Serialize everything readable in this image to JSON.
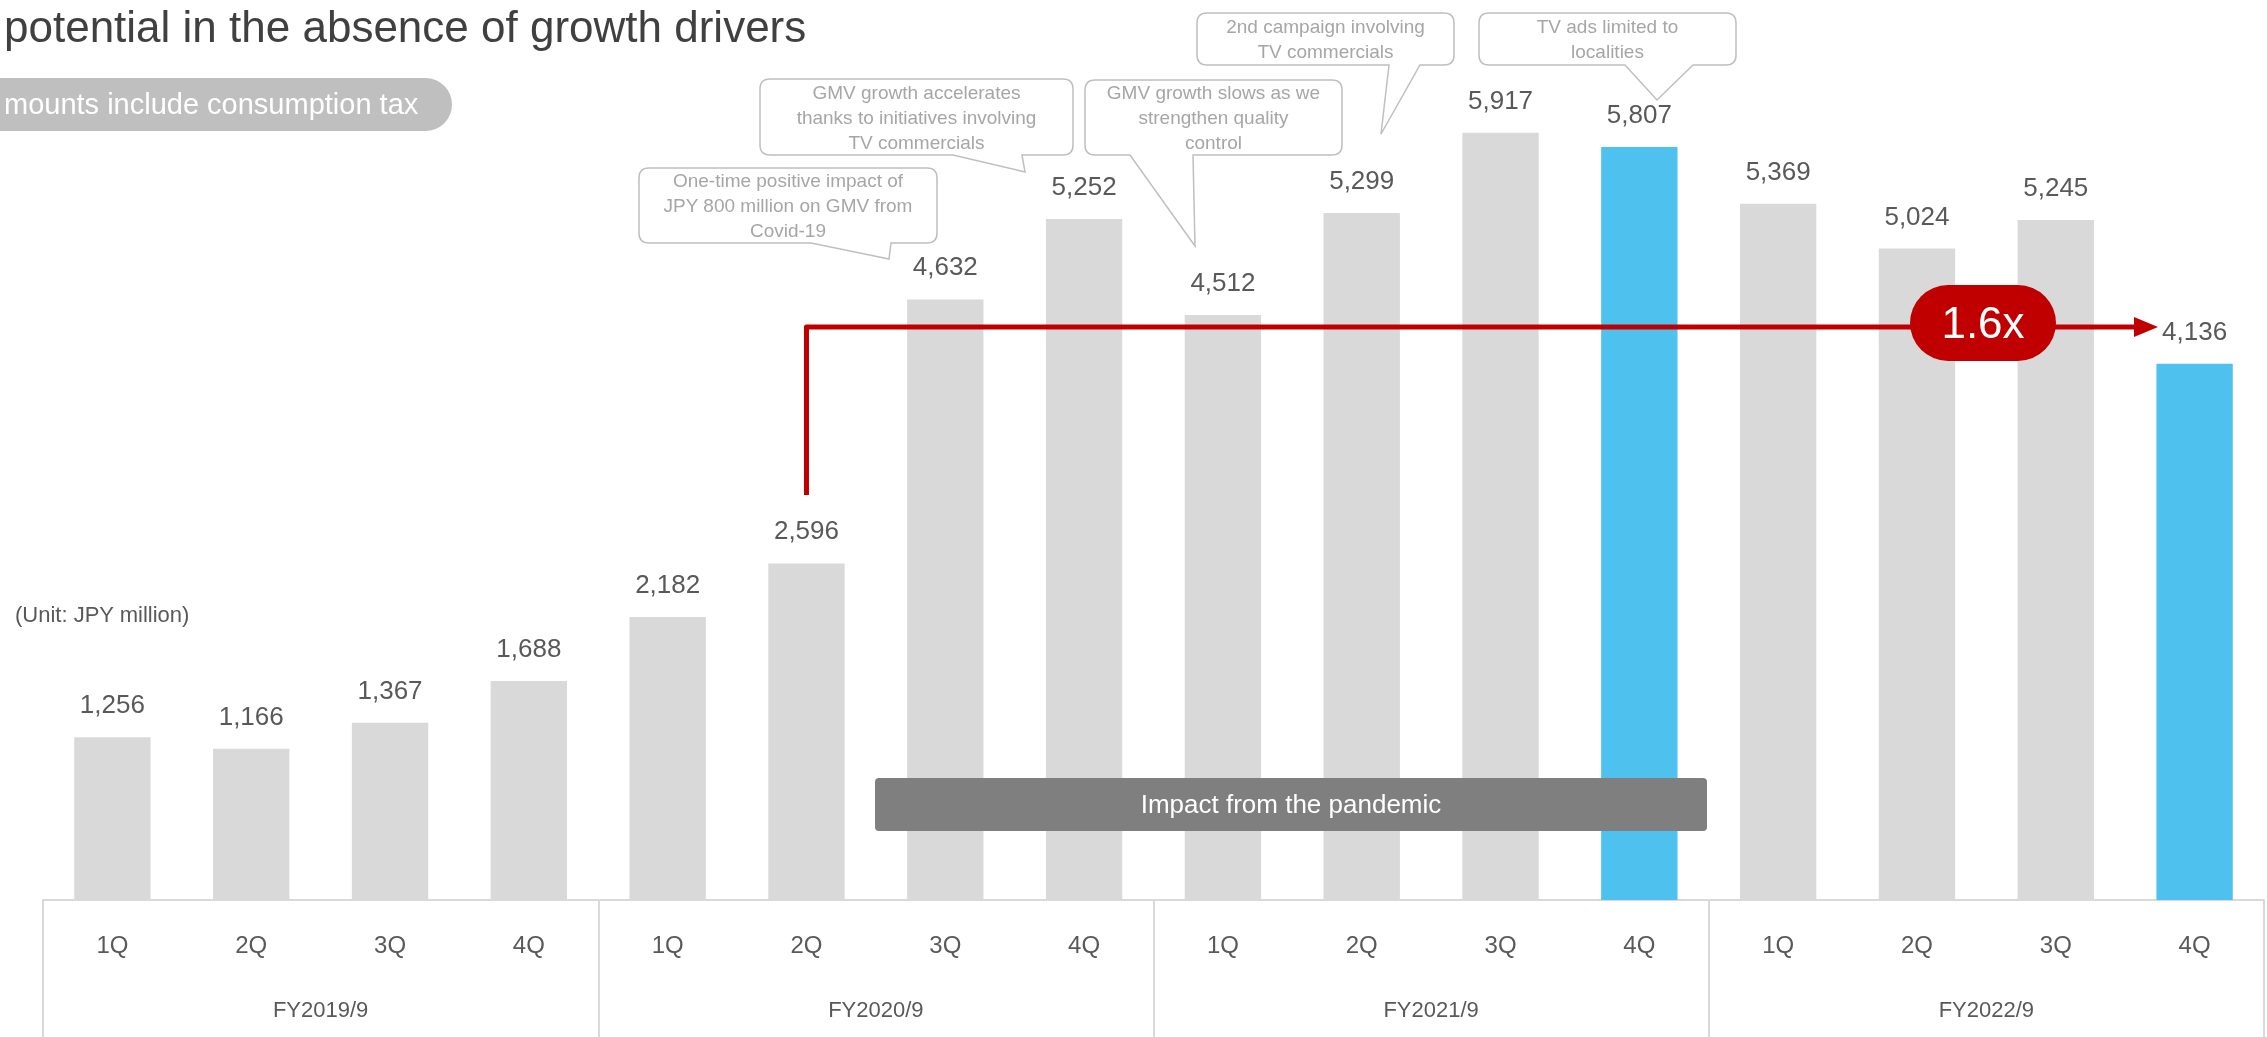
{
  "chart_data": {
    "type": "bar",
    "title": "potential in the absence of growth drivers",
    "subtitle": "mounts include consumption tax",
    "ylabel": "(Unit: JPY million)",
    "categories": [
      "1Q",
      "2Q",
      "3Q",
      "4Q",
      "1Q",
      "2Q",
      "3Q",
      "4Q",
      "1Q",
      "2Q",
      "3Q",
      "4Q",
      "1Q",
      "2Q",
      "3Q",
      "4Q"
    ],
    "values": [
      1256,
      1166,
      1367,
      1688,
      2182,
      2596,
      4632,
      5252,
      4512,
      5299,
      5917,
      5807,
      5369,
      5024,
      5245,
      4136
    ],
    "value_labels": [
      "1,256",
      "1,166",
      "1,367",
      "1,688",
      "2,182",
      "2,596",
      "4,632",
      "5,252",
      "4,512",
      "5,299",
      "5,917",
      "5,807",
      "5,369",
      "5,024",
      "5,245",
      "4,136"
    ],
    "colors": [
      "#d9d9d9",
      "#d9d9d9",
      "#d9d9d9",
      "#d9d9d9",
      "#d9d9d9",
      "#d9d9d9",
      "#d9d9d9",
      "#d9d9d9",
      "#d9d9d9",
      "#d9d9d9",
      "#d9d9d9",
      "#4fc1ef",
      "#d9d9d9",
      "#d9d9d9",
      "#d9d9d9",
      "#4fc1ef"
    ],
    "tick_labels": "x",
    "annotations": [
      "One-time positive impact of\nJPY 800 million on GMV from\nCovid-19",
      "GMV growth accelerates\nthanks to initiatives involving\nTV commercials",
      "GMV growth slows as we\nstrengthen quality\ncontrol",
      "2nd campaign involving\nTV commercials",
      "TV ads limited to\nlocalities",
      "Impact from the pandemic",
      "1.6x",
      "FY2019/9",
      "FY2020/9",
      "FY2021/9",
      "FY2022/9"
    ]
  }
}
